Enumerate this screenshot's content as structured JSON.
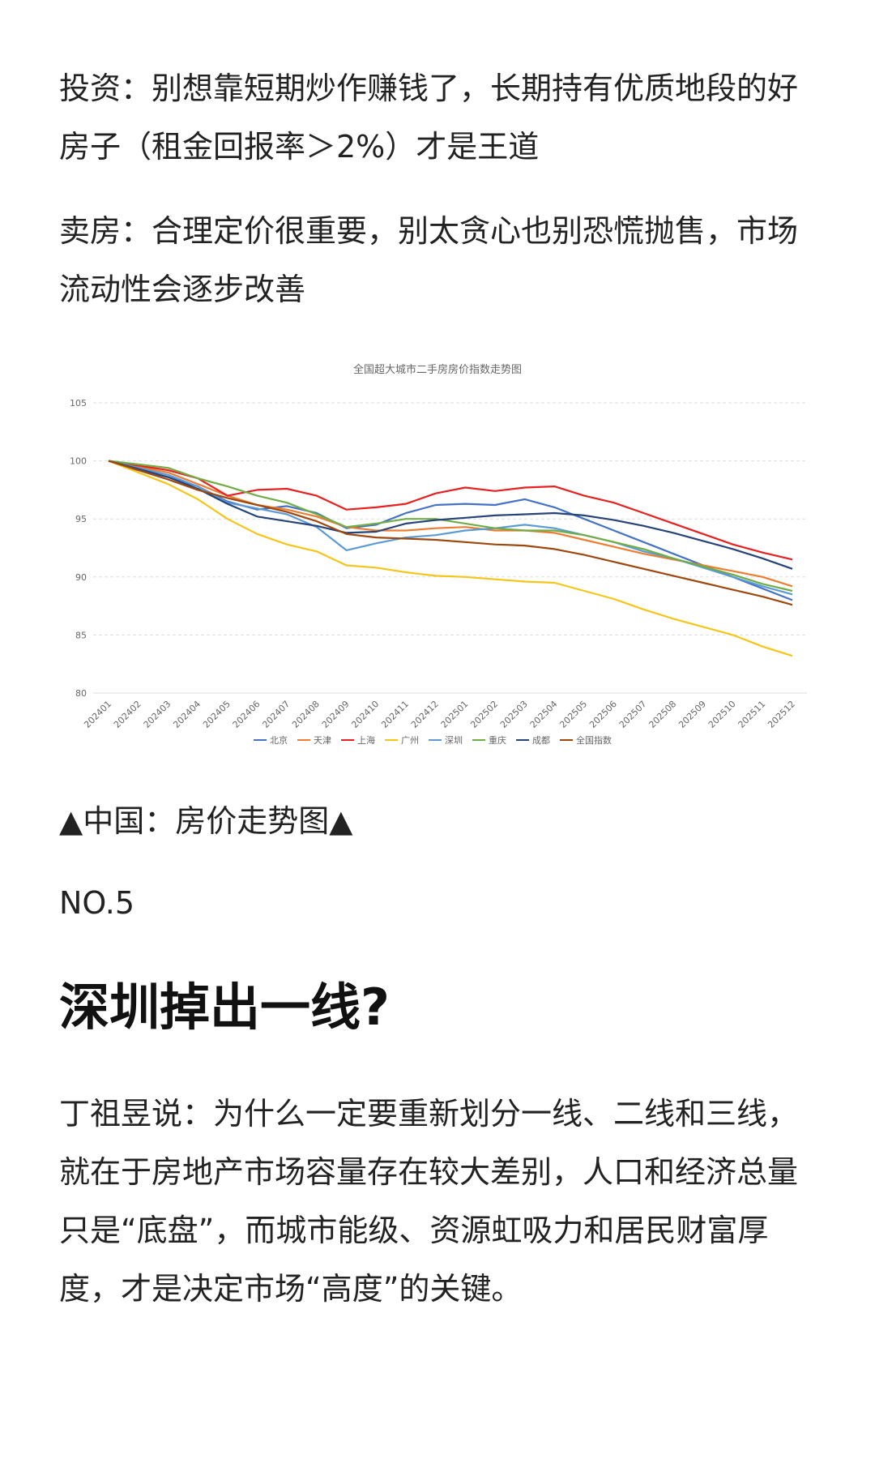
{
  "paragraphs": [
    "投资：别想靠短期炒作赚钱了，长期持有优质地段的好房子（租金回报率＞2%）才是王道",
    "卖房：合理定价很重要，别太贪心也别恐慌抛售，市场流动性会逐步改善"
  ],
  "chart_data": {
    "type": "line",
    "title": "全国超大城市二手房房价指数走势图",
    "categories": [
      "202401",
      "202402",
      "202403",
      "202404",
      "202405",
      "202406",
      "202407",
      "202408",
      "202409",
      "202410",
      "202411",
      "202412",
      "202501",
      "202502",
      "202503",
      "202504",
      "202505",
      "202506",
      "202507",
      "202508",
      "202509",
      "202510",
      "202511",
      "202512"
    ],
    "ylim": [
      80,
      105
    ],
    "yticks": [
      80,
      85,
      90,
      95,
      100,
      105
    ],
    "grid": true,
    "legend": "bottom",
    "series": [
      {
        "name": "北京",
        "color": "#4472c4",
        "values": [
          100,
          99.2,
          98.6,
          97.8,
          96.5,
          95.8,
          96.1,
          95.5,
          94.2,
          94.5,
          95.5,
          96.2,
          96.3,
          96.2,
          96.7,
          96.0,
          95.0,
          94.0,
          93.0,
          92.0,
          91.0,
          90.0,
          89.0,
          88.0
        ]
      },
      {
        "name": "天津",
        "color": "#ed7d31",
        "values": [
          100,
          99.5,
          99.0,
          98.0,
          97.0,
          96.2,
          95.8,
          95.2,
          94.3,
          94.0,
          94.0,
          94.2,
          94.3,
          94.0,
          94.0,
          93.8,
          93.2,
          92.6,
          92.0,
          91.5,
          91.0,
          90.5,
          90.0,
          89.2
        ]
      },
      {
        "name": "上海",
        "color": "#e8201f",
        "values": [
          100,
          99.6,
          99.2,
          98.5,
          97.0,
          97.5,
          97.6,
          97.0,
          95.8,
          96.0,
          96.3,
          97.2,
          97.7,
          97.4,
          97.7,
          97.8,
          97.0,
          96.4,
          95.5,
          94.6,
          93.7,
          92.8,
          92.1,
          91.5
        ]
      },
      {
        "name": "广州",
        "color": "#f5c518",
        "values": [
          100,
          99.0,
          98.0,
          96.7,
          95.0,
          93.7,
          92.8,
          92.2,
          91.0,
          90.8,
          90.4,
          90.1,
          90.0,
          89.8,
          89.6,
          89.5,
          88.8,
          88.1,
          87.2,
          86.4,
          85.7,
          85.0,
          84.0,
          83.2
        ]
      },
      {
        "name": "深圳",
        "color": "#5b9bd5",
        "values": [
          100,
          99.4,
          98.8,
          97.8,
          96.4,
          95.9,
          95.4,
          94.3,
          92.3,
          92.9,
          93.4,
          93.6,
          94.0,
          94.2,
          94.5,
          94.2,
          93.6,
          93.0,
          92.2,
          91.6,
          90.8,
          90.0,
          89.2,
          88.5
        ]
      },
      {
        "name": "重庆",
        "color": "#70ad47",
        "values": [
          100,
          99.7,
          99.4,
          98.5,
          97.8,
          97.0,
          96.4,
          95.4,
          94.3,
          94.6,
          95.0,
          95.0,
          94.6,
          94.2,
          94.0,
          94.0,
          93.6,
          93.0,
          92.4,
          91.6,
          90.9,
          90.2,
          89.4,
          88.8
        ]
      },
      {
        "name": "成都",
        "color": "#264478",
        "values": [
          100,
          99.3,
          98.6,
          97.6,
          96.3,
          95.2,
          94.8,
          94.4,
          93.8,
          93.9,
          94.6,
          94.9,
          95.1,
          95.3,
          95.4,
          95.5,
          95.3,
          94.9,
          94.4,
          93.8,
          93.1,
          92.4,
          91.6,
          90.7
        ]
      },
      {
        "name": "全国指数",
        "color": "#9e480e",
        "values": [
          100,
          99.2,
          98.4,
          97.5,
          96.8,
          96.2,
          95.6,
          94.8,
          93.7,
          93.4,
          93.3,
          93.2,
          93.0,
          92.8,
          92.7,
          92.4,
          91.9,
          91.3,
          90.7,
          90.1,
          89.5,
          88.9,
          88.3,
          87.6
        ]
      }
    ]
  },
  "caption": "▲中国：房价走势图▲",
  "section_number": "NO.5",
  "heading": "深圳掉出一线?",
  "body": "丁祖昱说：为什么一定要重新划分一线、二线和三线，就在于房地产市场容量存在较大差别，人口和经济总量只是“底盘”，而城市能级、资源虹吸力和居民财富厚度，才是决定市场“高度”的关键。"
}
